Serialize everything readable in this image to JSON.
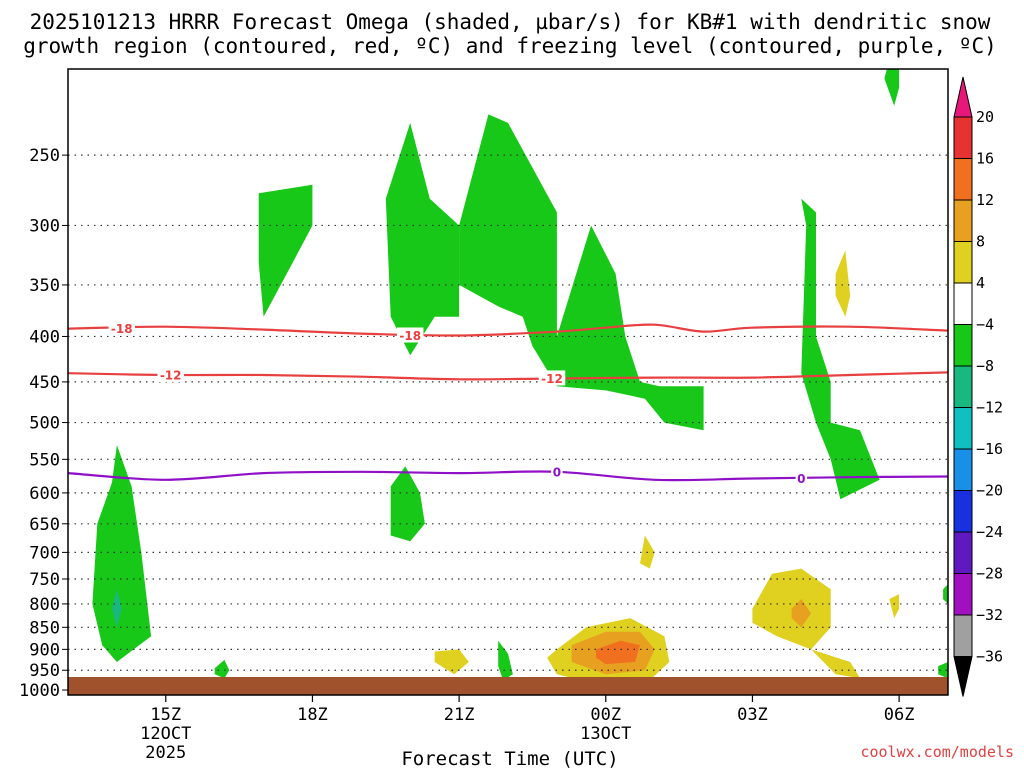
{
  "chart_data": {
    "type": "contour",
    "title_lines": [
      "2025101213 HRRR Forecast Omega (shaded, µbar/s) for KB#1 with dendritic snow",
      "growth region (contoured, red, ºC) and freezing level (contoured, purple, ºC)"
    ],
    "xlabel": "Forecast Time (UTC)",
    "x_ticks": [
      {
        "label": "15Z",
        "sub": [
          "12OCT",
          "2025"
        ],
        "hour": 2
      },
      {
        "label": "18Z",
        "sub": [],
        "hour": 5
      },
      {
        "label": "21Z",
        "sub": [],
        "hour": 8
      },
      {
        "label": "00Z",
        "sub": [
          "13OCT"
        ],
        "hour": 11
      },
      {
        "label": "03Z",
        "sub": [],
        "hour": 14
      },
      {
        "label": "06Z",
        "sub": [],
        "hour": 17
      }
    ],
    "x_range_hours": [
      0,
      18
    ],
    "y_axis": "pressure (hPa), log scale, inverted",
    "y_ticks": [
      250,
      300,
      350,
      400,
      450,
      500,
      550,
      600,
      650,
      700,
      750,
      800,
      850,
      900,
      950,
      1000
    ],
    "y_range": [
      200,
      1013
    ],
    "grid": "dotted",
    "colorbar": {
      "labels": [
        "20",
        "16",
        "12",
        "8",
        "4",
        "−4",
        "−8",
        "−12",
        "−16",
        "−20",
        "−24",
        "−28",
        "−32",
        "−36"
      ],
      "colors": [
        "#e8187a",
        "#e83232",
        "#f07020",
        "#e8a020",
        "#e0d020",
        "#ffffff",
        "#18c818",
        "#18b880",
        "#10c0c0",
        "#1890e8",
        "#1830e0",
        "#6018c0",
        "#a010c0",
        "#a0a0a0",
        "#000000"
      ]
    },
    "contours": [
      {
        "name": "dendritic-minus18",
        "label": "-18",
        "color": "#e84040",
        "points": [
          [
            0,
            392
          ],
          [
            2,
            390
          ],
          [
            4,
            393
          ],
          [
            6,
            397
          ],
          [
            8,
            399
          ],
          [
            10,
            395
          ],
          [
            11,
            391
          ],
          [
            12,
            388
          ],
          [
            13,
            395
          ],
          [
            14,
            391
          ],
          [
            16,
            390
          ],
          [
            18,
            394
          ]
        ]
      },
      {
        "name": "dendritic-minus12",
        "label": "-12",
        "color": "#e84040",
        "points": [
          [
            0,
            440
          ],
          [
            2,
            442
          ],
          [
            4,
            442
          ],
          [
            6,
            444
          ],
          [
            8,
            447
          ],
          [
            10,
            446
          ],
          [
            12,
            445
          ],
          [
            14,
            445
          ],
          [
            16,
            442
          ],
          [
            18,
            439
          ]
        ]
      },
      {
        "name": "freezing-level-0",
        "label": "0",
        "color": "#9010c8",
        "points": [
          [
            0,
            570
          ],
          [
            2,
            580
          ],
          [
            4,
            570
          ],
          [
            6,
            568
          ],
          [
            8,
            570
          ],
          [
            10,
            568
          ],
          [
            12,
            580
          ],
          [
            14,
            578
          ],
          [
            16,
            576
          ],
          [
            18,
            575
          ]
        ]
      }
    ],
    "contour_label_positions": [
      {
        "ref": 0,
        "x": 1.1,
        "y": 392
      },
      {
        "ref": 0,
        "x": 7.0,
        "y": 399
      },
      {
        "ref": 1,
        "x": 2.1,
        "y": 442
      },
      {
        "ref": 1,
        "x": 9.9,
        "y": 446
      },
      {
        "ref": 2,
        "x": 10.0,
        "y": 568
      },
      {
        "ref": 2,
        "x": 15.0,
        "y": 578
      }
    ],
    "omega_regions": [
      {
        "name": "omega-green-1",
        "fill": "#18c818",
        "points": [
          [
            0.9,
            584
          ],
          [
            1.0,
            530
          ],
          [
            1.3,
            590
          ],
          [
            1.5,
            700
          ],
          [
            1.7,
            870
          ],
          [
            1.0,
            930
          ],
          [
            0.7,
            890
          ],
          [
            0.5,
            800
          ],
          [
            0.6,
            650
          ]
        ]
      },
      {
        "name": "omega-teal-1",
        "fill": "#18b880",
        "points": [
          [
            1.0,
            770
          ],
          [
            1.1,
            810
          ],
          [
            1.0,
            850
          ],
          [
            0.9,
            810
          ]
        ]
      },
      {
        "name": "omega-green-2",
        "fill": "#18c818",
        "points": [
          [
            3.0,
            945
          ],
          [
            3.2,
            925
          ],
          [
            3.3,
            950
          ],
          [
            3.2,
            970
          ],
          [
            3.0,
            960
          ]
        ]
      },
      {
        "name": "omega-green-3",
        "fill": "#18c818",
        "points": [
          [
            3.9,
            276
          ],
          [
            5.0,
            270
          ],
          [
            5.0,
            300
          ],
          [
            4.6,
            330
          ],
          [
            4.0,
            380
          ],
          [
            3.9,
            330
          ]
        ]
      },
      {
        "name": "omega-green-4",
        "fill": "#18c818",
        "points": [
          [
            7.0,
            230
          ],
          [
            7.4,
            280
          ],
          [
            8.0,
            300
          ],
          [
            8.0,
            380
          ],
          [
            7.5,
            380
          ],
          [
            7.0,
            420
          ],
          [
            6.6,
            380
          ],
          [
            6.5,
            280
          ]
        ]
      },
      {
        "name": "omega-green-5",
        "fill": "#18c818",
        "points": [
          [
            8.0,
            300
          ],
          [
            8.6,
            225
          ],
          [
            9.0,
            230
          ],
          [
            10.0,
            290
          ],
          [
            10.0,
            400
          ],
          [
            10.7,
            300
          ],
          [
            11.2,
            340
          ],
          [
            11.4,
            400
          ],
          [
            11.7,
            450
          ],
          [
            12.1,
            455
          ],
          [
            13.0,
            455
          ],
          [
            13.0,
            510
          ],
          [
            12.2,
            500
          ],
          [
            11.8,
            470
          ],
          [
            11.0,
            460
          ],
          [
            10.0,
            455
          ],
          [
            9.5,
            410
          ],
          [
            9.3,
            380
          ],
          [
            8.8,
            370
          ],
          [
            8.0,
            350
          ]
        ]
      },
      {
        "name": "omega-green-6",
        "fill": "#18c818",
        "points": [
          [
            6.9,
            560
          ],
          [
            7.2,
            600
          ],
          [
            7.3,
            650
          ],
          [
            7.0,
            680
          ],
          [
            6.6,
            670
          ],
          [
            6.6,
            590
          ]
        ]
      },
      {
        "name": "omega-green-7",
        "fill": "#18c818",
        "points": [
          [
            8.8,
            880
          ],
          [
            9.0,
            910
          ],
          [
            9.1,
            960
          ],
          [
            8.9,
            975
          ],
          [
            8.8,
            940
          ]
        ]
      },
      {
        "name": "omega-green-8",
        "fill": "#18c818",
        "points": [
          [
            15.0,
            280
          ],
          [
            15.3,
            290
          ],
          [
            15.3,
            400
          ],
          [
            15.6,
            450
          ],
          [
            15.6,
            500
          ],
          [
            16.2,
            510
          ],
          [
            16.6,
            580
          ],
          [
            15.8,
            610
          ],
          [
            15.6,
            550
          ],
          [
            15.3,
            500
          ],
          [
            15.0,
            440
          ],
          [
            15.1,
            300
          ]
        ]
      },
      {
        "name": "omega-green-9",
        "fill": "#18c818",
        "points": [
          [
            16.8,
            195
          ],
          [
            17.0,
            200
          ],
          [
            17.0,
            210
          ],
          [
            16.9,
            220
          ],
          [
            16.7,
            205
          ]
        ]
      },
      {
        "name": "omega-green-10",
        "fill": "#18c818",
        "points": [
          [
            17.9,
            770
          ],
          [
            18.0,
            760
          ],
          [
            18.0,
            800
          ],
          [
            17.9,
            790
          ]
        ]
      },
      {
        "name": "omega-green-11",
        "fill": "#18c818",
        "points": [
          [
            17.8,
            940
          ],
          [
            18.0,
            930
          ],
          [
            18.0,
            970
          ],
          [
            17.8,
            960
          ]
        ]
      },
      {
        "name": "omega-yellow-1",
        "fill": "#e0d020",
        "points": [
          [
            7.5,
            905
          ],
          [
            8.0,
            900
          ],
          [
            8.2,
            930
          ],
          [
            7.9,
            960
          ],
          [
            7.5,
            930
          ]
        ]
      },
      {
        "name": "omega-yellow-2",
        "fill": "#e0d020",
        "points": [
          [
            10.0,
            900
          ],
          [
            10.6,
            850
          ],
          [
            11.5,
            830
          ],
          [
            12.2,
            870
          ],
          [
            12.3,
            930
          ],
          [
            11.9,
            975
          ],
          [
            11.0,
            990
          ],
          [
            10.0,
            960
          ],
          [
            9.8,
            920
          ]
        ]
      },
      {
        "name": "omega-orange-light-1",
        "fill": "#e8a020",
        "points": [
          [
            10.3,
            890
          ],
          [
            11.0,
            860
          ],
          [
            11.7,
            860
          ],
          [
            12.0,
            900
          ],
          [
            11.8,
            950
          ],
          [
            11.0,
            960
          ],
          [
            10.3,
            930
          ]
        ]
      },
      {
        "name": "omega-orange-1",
        "fill": "#f07020",
        "points": [
          [
            10.8,
            900
          ],
          [
            11.3,
            880
          ],
          [
            11.7,
            890
          ],
          [
            11.6,
            930
          ],
          [
            11.0,
            935
          ],
          [
            10.8,
            920
          ]
        ]
      },
      {
        "name": "omega-yellow-3",
        "fill": "#e0d020",
        "points": [
          [
            11.8,
            670
          ],
          [
            12.0,
            700
          ],
          [
            11.9,
            730
          ],
          [
            11.7,
            720
          ]
        ]
      },
      {
        "name": "omega-yellow-4",
        "fill": "#e0d020",
        "points": [
          [
            14.0,
            810
          ],
          [
            14.4,
            740
          ],
          [
            15.0,
            730
          ],
          [
            15.6,
            770
          ],
          [
            15.6,
            850
          ],
          [
            15.2,
            900
          ],
          [
            16.0,
            930
          ],
          [
            16.2,
            970
          ],
          [
            15.7,
            960
          ],
          [
            15.2,
            900
          ],
          [
            14.5,
            870
          ],
          [
            14.0,
            840
          ]
        ]
      },
      {
        "name": "omega-orange-light-2",
        "fill": "#e8a020",
        "points": [
          [
            14.8,
            810
          ],
          [
            15.0,
            790
          ],
          [
            15.2,
            820
          ],
          [
            15.0,
            850
          ],
          [
            14.8,
            830
          ]
        ]
      },
      {
        "name": "omega-yellow-5",
        "fill": "#e0d020",
        "points": [
          [
            15.7,
            340
          ],
          [
            15.9,
            320
          ],
          [
            16.0,
            360
          ],
          [
            15.9,
            380
          ],
          [
            15.7,
            360
          ]
        ]
      },
      {
        "name": "omega-yellow-6",
        "fill": "#e0d020",
        "points": [
          [
            16.8,
            790
          ],
          [
            17.0,
            780
          ],
          [
            17.0,
            810
          ],
          [
            16.9,
            830
          ]
        ]
      }
    ]
  },
  "footer": {
    "credit": "coolwx.com/models"
  }
}
